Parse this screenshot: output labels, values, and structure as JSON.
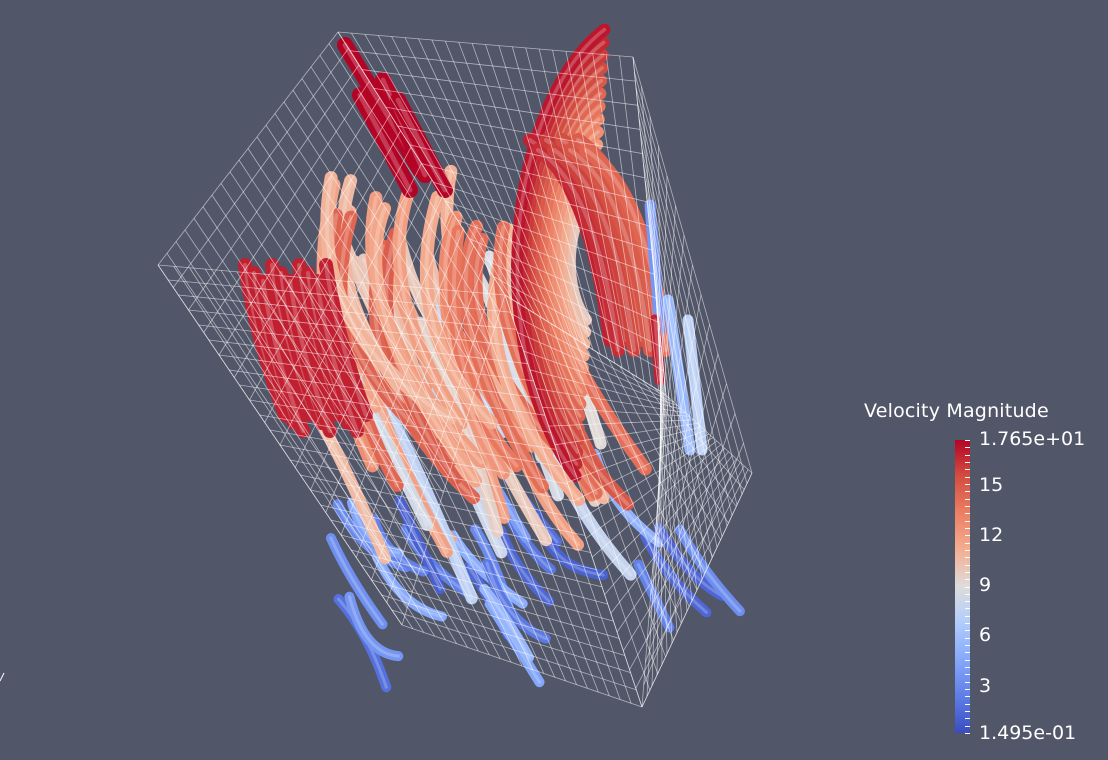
{
  "colors": {
    "background": "#525669",
    "low": "#3b4cc0",
    "mid": "#dddcdc",
    "high": "#b40426",
    "wireframe": "#ffffff"
  },
  "legend": {
    "title": "Velocity Magnitude",
    "max_label": "1.765e+01",
    "min_label": "1.495e-01",
    "tick_labels": [
      "15",
      "12",
      "9",
      "6",
      "3"
    ]
  },
  "scene": {
    "representation": "streamline-tubes",
    "outline": "wireframe-grid-box",
    "colormap": "cool-to-warm"
  }
}
